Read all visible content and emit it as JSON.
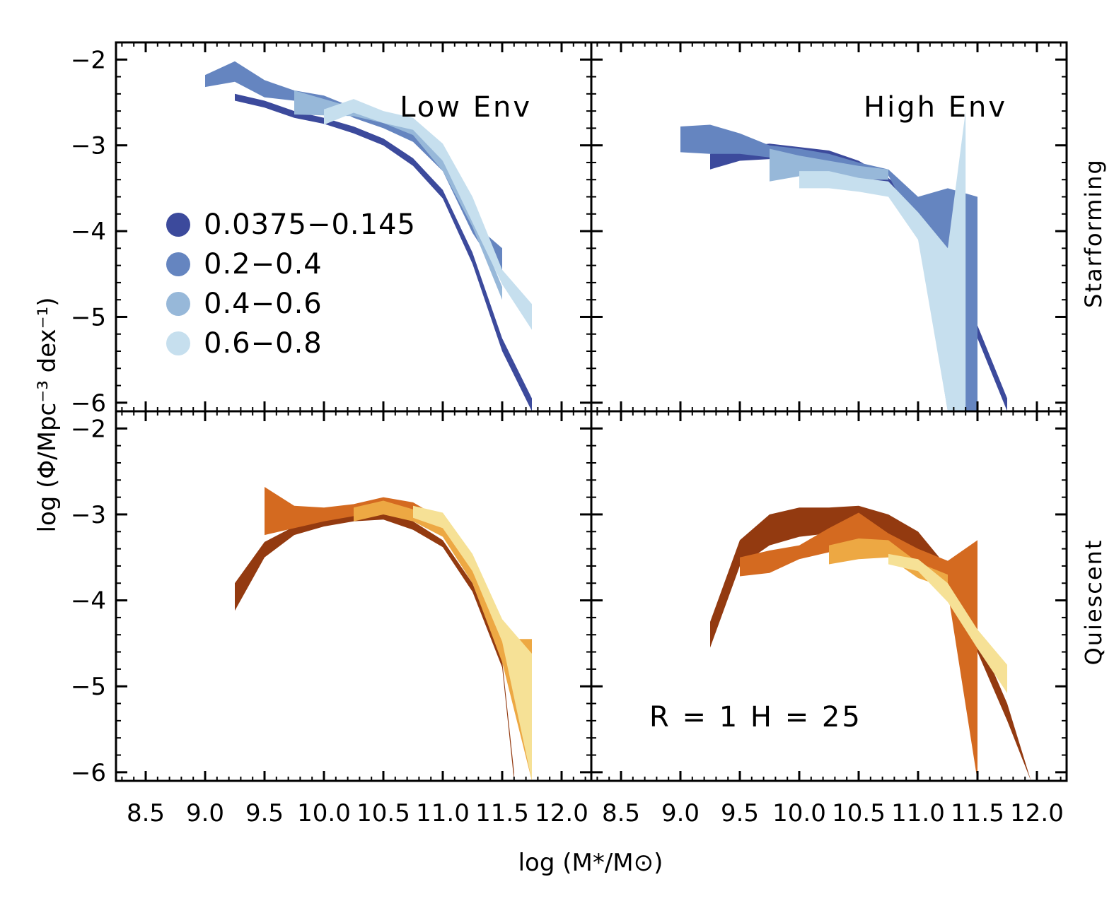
{
  "figure": {
    "xlabel": "log (M*/M⊙)",
    "ylabel": "log (Φ/Mpc⁻³ dex⁻¹)",
    "row_labels": [
      "Starforming",
      "Quiescent"
    ],
    "annotation": "R = 1 H = 25",
    "x_tick_labels": [
      "8.5",
      "9.0",
      "9.5",
      "10.0",
      "10.5",
      "11.0",
      "11.5",
      "12.0"
    ],
    "y_tick_labels": [
      "−2",
      "−3",
      "−4",
      "−5",
      "−6"
    ]
  },
  "legend": [
    {
      "label": "0.0375−0.145",
      "color": "#3c4a9c"
    },
    {
      "label": "0.2−0.4",
      "color": "#6585c0"
    },
    {
      "label": "0.4−0.6",
      "color": "#97b8d9"
    },
    {
      "label": "0.6−0.8",
      "color": "#c6dfee"
    }
  ],
  "chart_data": [
    {
      "type": "area",
      "panel": "top-left",
      "title": "Low Env",
      "xlim": [
        8.25,
        12.25
      ],
      "ylim": [
        -6.1,
        -1.8
      ],
      "x_ticks": [
        8.5,
        9.0,
        9.5,
        10.0,
        10.5,
        11.0,
        11.5,
        12.0
      ],
      "y_ticks": [
        -2,
        -3,
        -4,
        -5,
        -6
      ],
      "series": [
        {
          "name": "0.0375−0.145",
          "color": "#3c4a9c",
          "x": [
            9.25,
            9.5,
            9.75,
            10.0,
            10.25,
            10.5,
            10.75,
            11.0,
            11.25,
            11.5,
            11.75
          ],
          "lower": [
            -2.48,
            -2.56,
            -2.68,
            -2.75,
            -2.86,
            -3.0,
            -3.24,
            -3.62,
            -4.38,
            -5.4,
            -6.1
          ],
          "upper": [
            -2.4,
            -2.48,
            -2.6,
            -2.68,
            -2.78,
            -2.92,
            -3.15,
            -3.52,
            -4.25,
            -5.25,
            -5.95
          ]
        },
        {
          "name": "0.2−0.4",
          "color": "#6585c0",
          "x": [
            9.0,
            9.25,
            9.5,
            9.75,
            10.0,
            10.25,
            10.5,
            10.75,
            11.0,
            11.25,
            11.5
          ],
          "lower": [
            -2.32,
            -2.26,
            -2.44,
            -2.48,
            -2.5,
            -2.68,
            -2.8,
            -2.96,
            -3.3,
            -4.02,
            -4.55
          ],
          "upper": [
            -2.18,
            -2.02,
            -2.24,
            -2.36,
            -2.42,
            -2.56,
            -2.72,
            -2.85,
            -3.2,
            -3.9,
            -4.2
          ]
        },
        {
          "name": "0.4−0.6",
          "color": "#97b8d9",
          "x": [
            9.75,
            10.0,
            10.25,
            10.5,
            10.75,
            11.0,
            11.25,
            11.5
          ],
          "lower": [
            -2.64,
            -2.65,
            -2.66,
            -2.74,
            -2.88,
            -3.3,
            -3.95,
            -4.8
          ],
          "upper": [
            -2.36,
            -2.46,
            -2.56,
            -2.66,
            -2.74,
            -3.18,
            -3.82,
            -4.65
          ]
        },
        {
          "name": "0.6−0.8",
          "color": "#c6dfee",
          "x": [
            10.0,
            10.25,
            10.5,
            10.75,
            11.0,
            11.25,
            11.5,
            11.75
          ],
          "lower": [
            -2.76,
            -2.62,
            -2.74,
            -2.82,
            -3.18,
            -3.9,
            -4.62,
            -5.15
          ],
          "upper": [
            -2.58,
            -2.46,
            -2.6,
            -2.68,
            -2.98,
            -3.6,
            -4.45,
            -4.85
          ]
        }
      ]
    },
    {
      "type": "area",
      "panel": "top-right",
      "title": "High Env",
      "xlim": [
        8.25,
        12.25
      ],
      "ylim": [
        -6.1,
        -1.8
      ],
      "x_ticks": [
        8.5,
        9.0,
        9.5,
        10.0,
        10.5,
        11.0,
        11.5,
        12.0
      ],
      "y_ticks": [
        -2,
        -3,
        -4,
        -5,
        -6
      ],
      "series": [
        {
          "name": "0.0375−0.145",
          "color": "#3c4a9c",
          "x": [
            9.25,
            9.5,
            9.75,
            10.0,
            10.25,
            10.5,
            10.75,
            11.0,
            11.25,
            11.5,
            11.75
          ],
          "lower": [
            -3.28,
            -3.18,
            -3.16,
            -3.16,
            -3.22,
            -3.32,
            -3.48,
            -3.82,
            -4.4,
            -5.25,
            -6.1
          ],
          "upper": [
            -3.1,
            -3.02,
            -2.98,
            -3.02,
            -3.06,
            -3.18,
            -3.38,
            -3.68,
            -4.28,
            -5.1,
            -5.95
          ]
        },
        {
          "name": "0.2−0.4",
          "color": "#6585c0",
          "x": [
            9.0,
            9.25,
            9.5,
            9.75,
            10.0,
            10.25,
            10.5,
            10.75,
            11.0,
            11.25,
            11.5
          ],
          "lower": [
            -3.08,
            -3.1,
            -3.1,
            -3.14,
            -3.18,
            -3.22,
            -3.28,
            -3.35,
            -4.0,
            -6.1,
            -6.1
          ],
          "upper": [
            -2.78,
            -2.76,
            -2.86,
            -3.0,
            -3.04,
            -3.1,
            -3.2,
            -3.28,
            -3.6,
            -3.5,
            -3.6
          ]
        },
        {
          "name": "0.4−0.6",
          "color": "#97b8d9",
          "x": [
            9.75,
            10.0,
            10.25,
            10.5,
            10.75
          ],
          "lower": [
            -3.42,
            -3.36,
            -3.36,
            -3.4,
            -3.4
          ],
          "upper": [
            -3.04,
            -3.12,
            -3.18,
            -3.24,
            -3.28
          ]
        },
        {
          "name": "0.6−0.8",
          "color": "#c6dfee",
          "x": [
            10.0,
            10.25,
            10.5,
            10.75,
            11.0,
            11.25,
            11.4
          ],
          "lower": [
            -3.5,
            -3.5,
            -3.54,
            -3.6,
            -4.1,
            -6.1,
            -6.1
          ],
          "upper": [
            -3.3,
            -3.3,
            -3.38,
            -3.42,
            -3.78,
            -4.2,
            -2.6
          ]
        }
      ]
    },
    {
      "type": "area",
      "panel": "bottom-left",
      "xlim": [
        8.25,
        12.25
      ],
      "ylim": [
        -6.1,
        -1.8
      ],
      "x_ticks": [
        8.5,
        9.0,
        9.5,
        10.0,
        10.5,
        11.0,
        11.5,
        12.0
      ],
      "y_ticks": [
        -2,
        -3,
        -4,
        -5,
        -6
      ],
      "series": [
        {
          "color": "#933a10",
          "x": [
            9.25,
            9.5,
            9.75,
            10.0,
            10.25,
            10.5,
            10.75,
            11.0,
            11.25,
            11.5,
            11.6
          ],
          "lower": [
            -4.12,
            -3.5,
            -3.24,
            -3.14,
            -3.08,
            -3.06,
            -3.18,
            -3.38,
            -3.9,
            -4.78,
            -6.1
          ],
          "upper": [
            -3.8,
            -3.32,
            -3.14,
            -3.06,
            -3.0,
            -2.96,
            -3.08,
            -3.3,
            -3.8,
            -4.7,
            -6.0
          ]
        },
        {
          "color": "#d46a20",
          "x": [
            9.5,
            9.75,
            10.0,
            10.25,
            10.5,
            10.75,
            11.0,
            11.25
          ],
          "lower": [
            -3.24,
            -3.16,
            -3.08,
            -3.02,
            -2.96,
            -3.0,
            -3.16,
            -3.65
          ],
          "upper": [
            -2.68,
            -2.9,
            -2.92,
            -2.88,
            -2.8,
            -2.86,
            -3.06,
            -3.55
          ]
        },
        {
          "color": "#eda843",
          "x": [
            10.25,
            10.5,
            10.75,
            11.0,
            11.25,
            11.5,
            11.75
          ],
          "lower": [
            -3.08,
            -3.0,
            -3.08,
            -3.26,
            -3.8,
            -4.72,
            -6.1
          ],
          "upper": [
            -2.92,
            -2.84,
            -2.94,
            -3.1,
            -3.64,
            -4.45,
            -4.45
          ]
        },
        {
          "color": "#f6e196",
          "x": [
            10.75,
            11.0,
            11.25,
            11.5,
            11.75
          ],
          "lower": [
            -3.04,
            -3.16,
            -3.66,
            -4.48,
            -6.1
          ],
          "upper": [
            -2.9,
            -2.98,
            -3.46,
            -4.22,
            -4.62
          ]
        }
      ]
    },
    {
      "type": "area",
      "panel": "bottom-right",
      "xlim": [
        8.25,
        12.25
      ],
      "ylim": [
        -6.1,
        -1.8
      ],
      "x_ticks": [
        8.5,
        9.0,
        9.5,
        10.0,
        10.5,
        11.0,
        11.5,
        12.0
      ],
      "y_ticks": [
        -2,
        -3,
        -4,
        -5,
        -6
      ],
      "series": [
        {
          "color": "#933a10",
          "x": [
            9.25,
            9.5,
            9.75,
            10.0,
            10.25,
            10.5,
            10.75,
            11.0,
            11.25,
            11.5,
            11.75,
            11.95
          ],
          "lower": [
            -4.55,
            -3.6,
            -3.36,
            -3.26,
            -3.22,
            -3.16,
            -3.26,
            -3.42,
            -3.84,
            -4.6,
            -5.4,
            -6.1
          ],
          "upper": [
            -4.25,
            -3.3,
            -3.0,
            -2.92,
            -2.92,
            -2.9,
            -3.0,
            -3.2,
            -3.62,
            -4.4,
            -5.2,
            -6.1
          ]
        },
        {
          "color": "#d46a20",
          "x": [
            9.5,
            9.75,
            10.0,
            10.25,
            10.5,
            10.75,
            11.0,
            11.25,
            11.5
          ],
          "lower": [
            -3.72,
            -3.68,
            -3.52,
            -3.44,
            -3.38,
            -3.5,
            -3.6,
            -3.9,
            -6.1
          ],
          "upper": [
            -3.5,
            -3.42,
            -3.36,
            -3.16,
            -2.98,
            -3.22,
            -3.4,
            -3.54,
            -3.3
          ]
        },
        {
          "color": "#eda843",
          "x": [
            10.25,
            10.5,
            10.75,
            11.0,
            11.25
          ],
          "lower": [
            -3.58,
            -3.52,
            -3.5,
            -3.74,
            -3.86
          ],
          "upper": [
            -3.36,
            -3.28,
            -3.3,
            -3.56,
            -3.7
          ]
        },
        {
          "color": "#f6e196",
          "x": [
            10.75,
            11.0,
            11.25,
            11.5,
            11.75
          ],
          "lower": [
            -3.58,
            -3.66,
            -4.02,
            -4.56,
            -5.08
          ],
          "upper": [
            -3.46,
            -3.52,
            -3.8,
            -4.34,
            -4.75
          ]
        }
      ]
    }
  ]
}
